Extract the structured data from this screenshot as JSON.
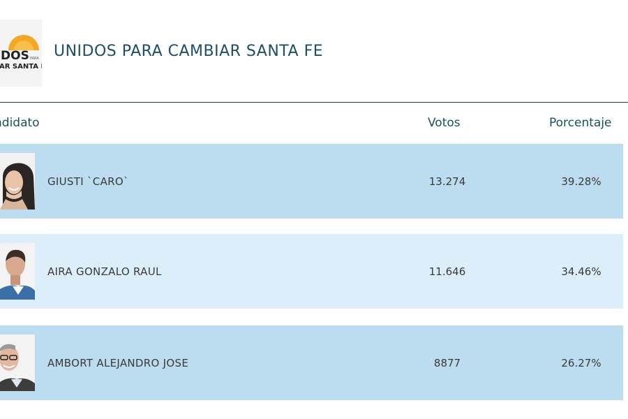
{
  "party": {
    "name": "UNIDOS PARA CAMBIAR SANTA FE",
    "logo_text_top": "DOS",
    "logo_text_small": "PARA",
    "logo_text_bottom": "AR SANTA FE",
    "colors": {
      "title": "#1c4f63",
      "logo_sun": "#f5a623"
    }
  },
  "table": {
    "headers": {
      "candidate": "ndidato",
      "votes": "Votos",
      "percentage": "Porcentaje"
    },
    "rows": [
      {
        "name": "GIUSTI `CARO`",
        "votes": "13.274",
        "percentage": "39.28%",
        "photo_icon": "candidate-photo-woman"
      },
      {
        "name": "AIRA GONZALO RAUL",
        "votes": "11.646",
        "percentage": "34.46%",
        "photo_icon": "candidate-photo-man"
      },
      {
        "name": "AMBORT ALEJANDRO JOSE",
        "votes": "8877",
        "percentage": "26.27%",
        "photo_icon": "candidate-photo-man-glasses"
      }
    ],
    "colors": {
      "row_dark": "#bcdcef",
      "row_light": "#dbeef9"
    }
  }
}
